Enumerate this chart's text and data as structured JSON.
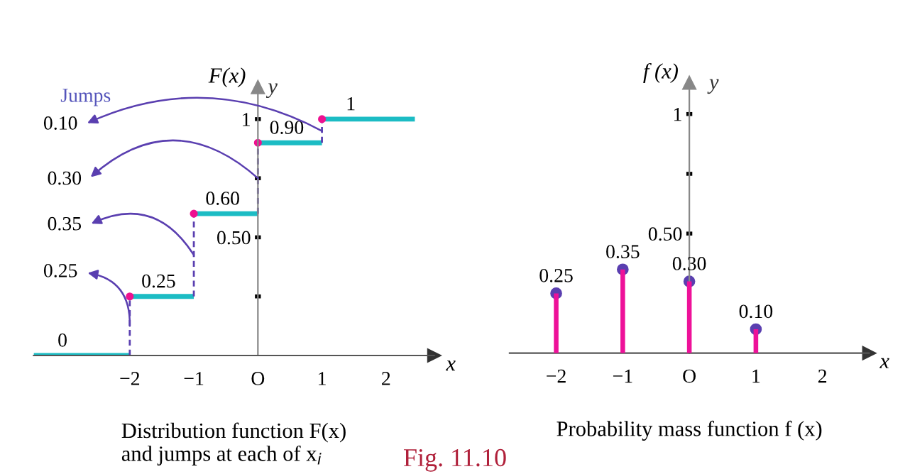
{
  "chart_data": [
    {
      "type": "step",
      "title": "Distribution function F(x)\nand jumps at each of x$_{i}$",
      "xlabel": "x",
      "ylabel": "F(x)",
      "x": [
        -3.5,
        -2,
        -1,
        0,
        1,
        2.45
      ],
      "series": [
        {
          "color": "#1cbcc4",
          "values": [
            0,
            0.25,
            0.6,
            0.9,
            1,
            1
          ],
          "value_labels": [
            "0",
            "0.25",
            "0.60",
            "0.90",
            "1",
            null
          ]
        }
      ],
      "xlim": [
        -3.5,
        2.75
      ],
      "ylim": [
        0,
        1.135
      ],
      "xticks": [
        {
          "value": -2,
          "label": "−2"
        },
        {
          "value": -1,
          "label": "−1"
        },
        {
          "value": 0,
          "label": "O"
        },
        1,
        2
      ],
      "yticks": [
        {
          "value": 0.25,
          "label": null
        },
        {
          "value": 0.5,
          "label": "0.50"
        },
        {
          "value": 0.75,
          "label": null
        },
        1
      ],
      "annotations": [
        "y",
        "Jumps",
        "Fig. 11.10",
        "0.10",
        "0.30",
        "0.35",
        "0.25"
      ],
      "grid": false,
      "legend": false
    },
    {
      "type": "bar",
      "title": "Probability mass function f (x)",
      "xlabel": "x",
      "ylabel": "f (x)",
      "x": [
        -2,
        -1,
        0,
        1
      ],
      "series": [
        {
          "type": "bar",
          "color": "#ee1199",
          "values": [
            0.25,
            0.35,
            0.3,
            0.1
          ]
        },
        {
          "type": "scatter",
          "color": "#5a3fb0",
          "values": [
            0.25,
            0.35,
            0.3,
            0.1
          ],
          "value_labels": [
            "0.25",
            "0.35",
            "0.30",
            "0.10"
          ]
        }
      ],
      "marker": "circle",
      "xlim": [
        -2.7,
        2.7
      ],
      "ylim": [
        0,
        1.13
      ],
      "xticks": [
        {
          "value": -2,
          "label": "−2"
        },
        {
          "value": -1,
          "label": "−1"
        },
        {
          "value": 0,
          "label": "O"
        },
        1,
        2
      ],
      "yticks": [
        {
          "value": 0.5,
          "label": "0.50"
        },
        {
          "value": 0.75,
          "label": null
        },
        1
      ],
      "annotations": [
        "y"
      ],
      "grid": false,
      "legend": false
    }
  ]
}
